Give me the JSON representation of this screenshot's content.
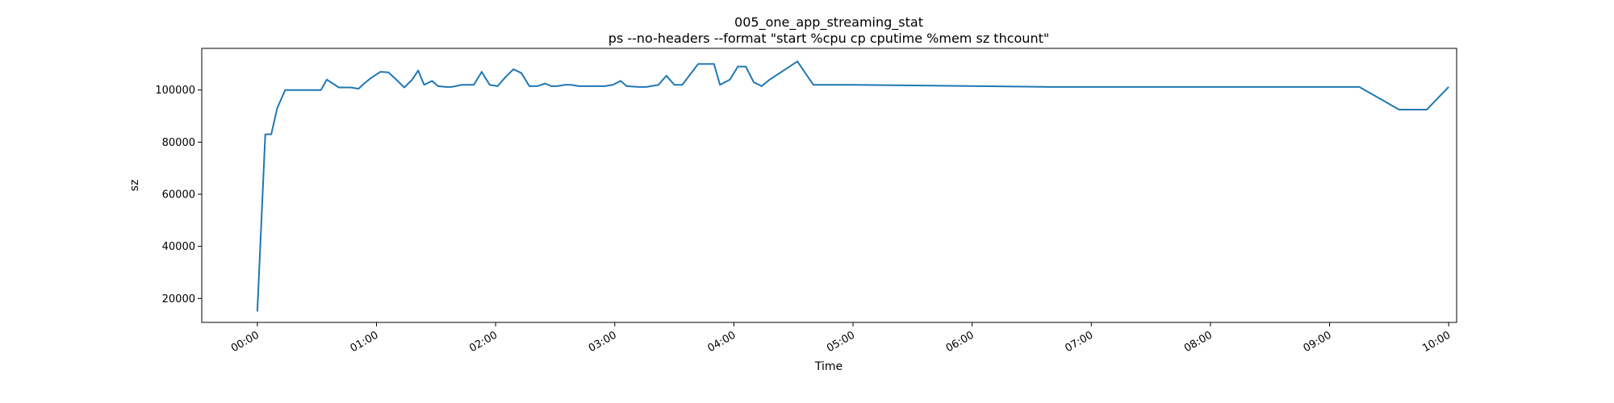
{
  "chart_data": {
    "type": "line",
    "title": "005_one_app_streaming_stat",
    "subtitle": "ps --no-headers --format \"start %cpu cp cputime %mem sz thcount\"",
    "xlabel": "Time",
    "ylabel": "sz",
    "x_tick_labels": [
      "00:00",
      "01:00",
      "02:00",
      "03:00",
      "04:00",
      "05:00",
      "06:00",
      "07:00",
      "08:00",
      "09:00",
      "10:00"
    ],
    "y_tick_labels": [
      "20000",
      "40000",
      "60000",
      "80000",
      "100000"
    ],
    "x_unit": "minutes since 00:00",
    "xlim": [
      -28,
      604
    ],
    "ylim": [
      10800,
      116000
    ],
    "grid": false,
    "series": [
      {
        "name": "sz",
        "color": "#1f77b4",
        "x": [
          0,
          4,
          7,
          10,
          14,
          25,
          32,
          35,
          41,
          47,
          51,
          53,
          57,
          62,
          66,
          70,
          74,
          78,
          81,
          84,
          88,
          91,
          95,
          98,
          103,
          109,
          113,
          117,
          121,
          125,
          129,
          133,
          137,
          141,
          145,
          148,
          151,
          155,
          158,
          162,
          166,
          170,
          175,
          179,
          183,
          186,
          192,
          196,
          202,
          206,
          210,
          214,
          218,
          222,
          226,
          230,
          233,
          238,
          242,
          246,
          250,
          254,
          258,
          272,
          280,
          300,
          400,
          500,
          600,
          516,
          532,
          540,
          555,
          575,
          589
        ],
        "y": [
          15000,
          83000,
          83000,
          93000,
          100000,
          100000,
          100000,
          104000,
          101000,
          101000,
          100500,
          102000,
          104500,
          107000,
          106800,
          104000,
          101000,
          104000,
          107500,
          102000,
          103500,
          101500,
          101200,
          101200,
          102000,
          102000,
          107000,
          102000,
          101500,
          105000,
          108000,
          106500,
          101500,
          101500,
          102500,
          101500,
          101500,
          102000,
          102000,
          101500,
          101500,
          101500,
          101500,
          102000,
          103500,
          101500,
          101200,
          101200,
          102000,
          105500,
          102000,
          102000,
          106000,
          110000,
          110000,
          110000,
          102000,
          104000,
          109000,
          109000,
          103000,
          101500,
          104000,
          111000,
          102000,
          102000,
          101200,
          101200,
          101200,
          101200,
          101200,
          101200,
          101200,
          92500,
          92500
        ]
      }
    ]
  }
}
